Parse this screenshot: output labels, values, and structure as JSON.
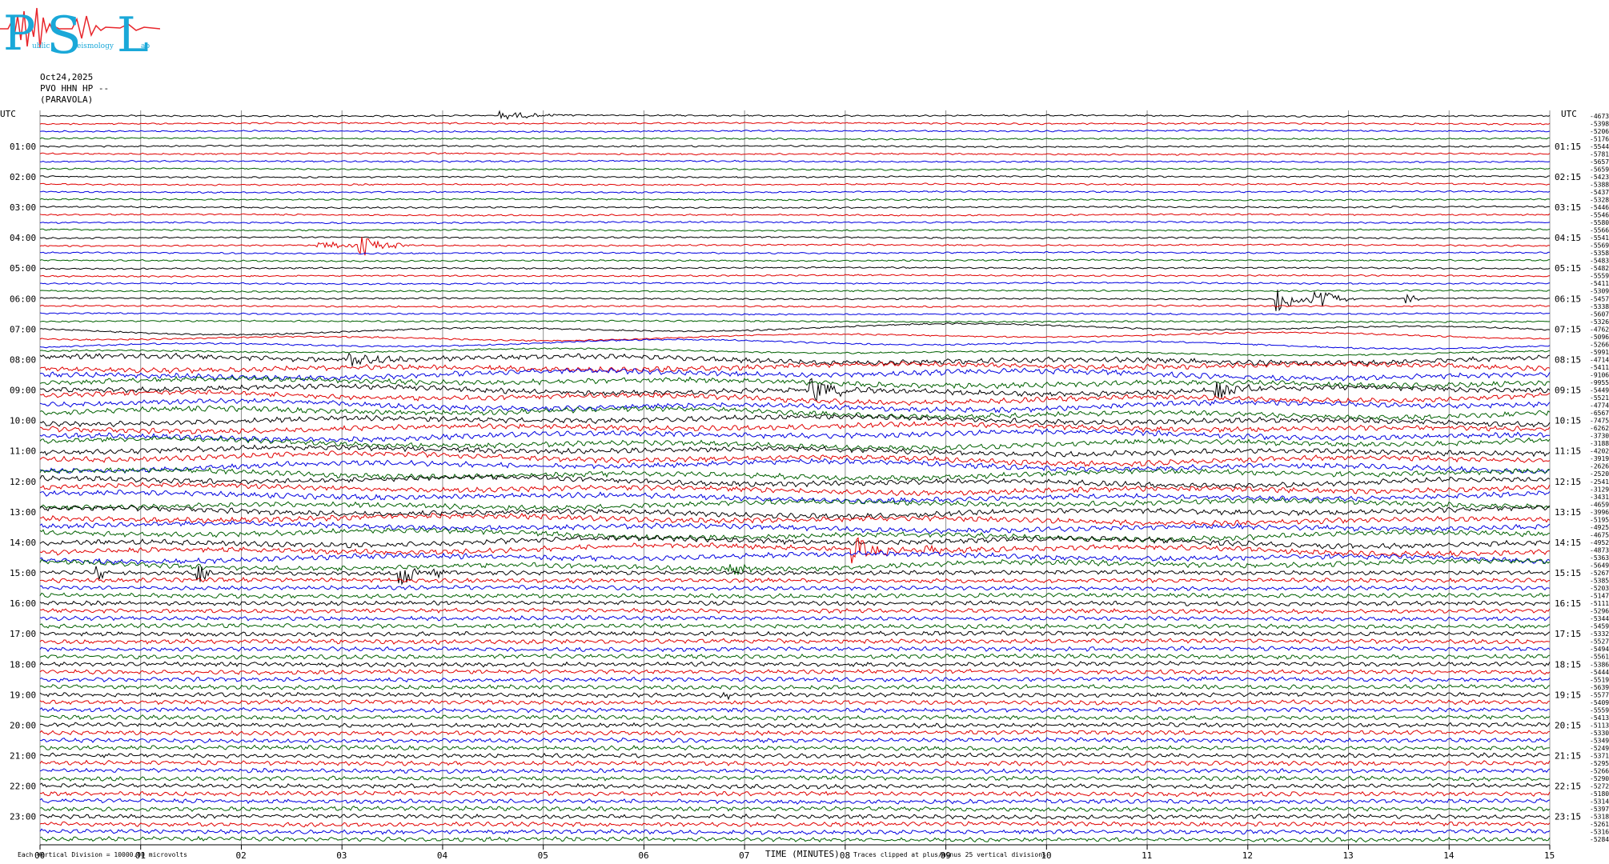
{
  "header": {
    "logo_letters": [
      "P",
      "S",
      "L"
    ],
    "logo_small": [
      "ublic",
      "eismology",
      "ab"
    ],
    "date": "Oct24,2025",
    "channel": "PVO HHN HP --",
    "station": "(PARAVOLA)"
  },
  "colors": {
    "trace_cycle": [
      "#000000",
      "#e00000",
      "#0000e0",
      "#006000"
    ],
    "grid": "#909090",
    "logo_primary": "#1aa8d8",
    "logo_accent": "#e8262c"
  },
  "chart_data": {
    "type": "line",
    "title": "",
    "left_axis_title": "UTC",
    "right_axis_title": "UTC",
    "xlabel": "TIME (MINUTES)",
    "xlim": [
      0,
      15
    ],
    "x_ticks": [
      "00",
      "01",
      "02",
      "03",
      "04",
      "05",
      "06",
      "07",
      "08",
      "09",
      "10",
      "11",
      "12",
      "13",
      "14",
      "15"
    ],
    "trace_count": 96,
    "left_hour_labels": [
      "01:00",
      "02:00",
      "03:00",
      "04:00",
      "05:00",
      "06:00",
      "07:00",
      "08:00",
      "09:00",
      "10:00",
      "11:00",
      "12:00",
      "13:00",
      "14:00",
      "15:00",
      "16:00",
      "17:00",
      "18:00",
      "19:00",
      "20:00",
      "21:00",
      "22:00",
      "23:00"
    ],
    "right_hour_labels": [
      "01:15",
      "02:15",
      "03:15",
      "04:15",
      "05:15",
      "06:15",
      "07:15",
      "08:15",
      "09:15",
      "10:15",
      "11:15",
      "12:15",
      "13:15",
      "14:15",
      "15:15",
      "16:15",
      "17:15",
      "18:15",
      "19:15",
      "20:15",
      "21:15",
      "22:15",
      "23:15"
    ],
    "trace_offsets": [
      "-4673",
      "-5398",
      "-5206",
      "-5176",
      "-5544",
      "-5781",
      "-5657",
      "-5659",
      "-5423",
      "-5388",
      "-5437",
      "-5328",
      "-5446",
      "-5546",
      "-5580",
      "-5566",
      "-5541",
      "-5569",
      "-5358",
      "-5483",
      "-5482",
      "-5559",
      "-5411",
      "-5309",
      "-5457",
      "-5338",
      "-5607",
      "-5326",
      "-4762",
      "-5096",
      "-5266",
      "-5991",
      "-4714",
      "-5411",
      "-9106",
      "-9955",
      "-5449",
      "-5521",
      "-4774",
      "-6567",
      "-7475",
      "-6262",
      "-3730",
      "-3188",
      "-4202",
      "-3919",
      "-2626",
      "-2520",
      "-2541",
      "-3129",
      "-3431",
      "-4659",
      "-3996",
      "-5195",
      "-4925",
      "-4675",
      "-4952",
      "-4873",
      "-5363",
      "-5649",
      "-5267",
      "-5385",
      "-5203",
      "-5147",
      "-5111",
      "-5296",
      "-5344",
      "-5459",
      "-5332",
      "-5527",
      "-5494",
      "-5561",
      "-5386",
      "-5444",
      "-5519",
      "-5639",
      "-5577",
      "-5409",
      "-5559",
      "-5413",
      "-5113",
      "-5330",
      "-5349",
      "-5249",
      "-5371",
      "-5295",
      "-5266",
      "-5290",
      "-5272",
      "-5180",
      "-5314",
      "-5397",
      "-5318",
      "-5261",
      "-5316",
      "-5284"
    ],
    "events": [
      {
        "trace": 0,
        "minute": 4.6,
        "amp": 0.6,
        "dur": 0.8
      },
      {
        "trace": 17,
        "minute": 2.8,
        "amp": 0.5,
        "dur": 1.2
      },
      {
        "trace": 17,
        "minute": 3.2,
        "amp": 1.6,
        "dur": 0.4
      },
      {
        "trace": 24,
        "minute": 12.3,
        "amp": 1.8,
        "dur": 0.6
      },
      {
        "trace": 24,
        "minute": 12.7,
        "amp": 1.6,
        "dur": 0.4
      },
      {
        "trace": 24,
        "minute": 13.6,
        "amp": 0.8,
        "dur": 0.2
      },
      {
        "trace": 32,
        "minute": 3.1,
        "amp": 1.2,
        "dur": 0.6
      },
      {
        "trace": 36,
        "minute": 7.7,
        "amp": 1.8,
        "dur": 0.5
      },
      {
        "trace": 36,
        "minute": 11.7,
        "amp": 1.2,
        "dur": 0.5
      },
      {
        "trace": 57,
        "minute": 8.1,
        "amp": 1.8,
        "dur": 0.5
      },
      {
        "trace": 57,
        "minute": 8.8,
        "amp": 1.0,
        "dur": 0.3
      },
      {
        "trace": 59,
        "minute": 6.9,
        "amp": 1.0,
        "dur": 0.3
      },
      {
        "trace": 60,
        "minute": 3.6,
        "amp": 1.8,
        "dur": 0.6
      },
      {
        "trace": 60,
        "minute": 1.6,
        "amp": 1.4,
        "dur": 0.1
      },
      {
        "trace": 60,
        "minute": 0.6,
        "amp": 1.2,
        "dur": 0.05
      },
      {
        "trace": 76,
        "minute": 6.8,
        "amp": 0.7,
        "dur": 0.2
      }
    ]
  },
  "footer": {
    "left_note": "Each Vertical Division = 10000.00 microvolts",
    "right_note": "Traces clipped at plus/minus 25 vertical divisions"
  }
}
